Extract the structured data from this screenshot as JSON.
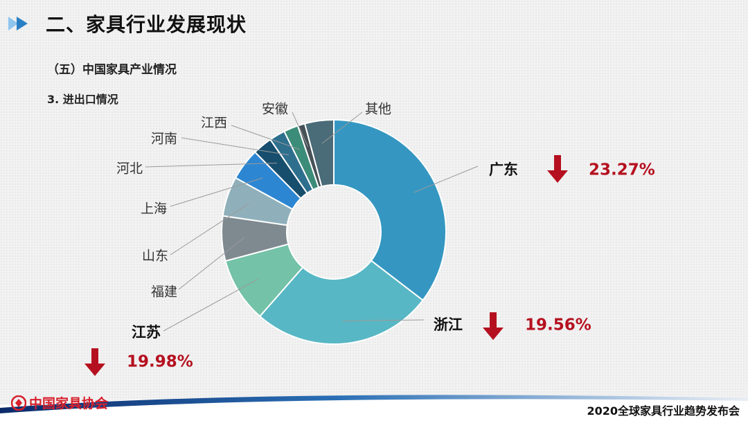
{
  "slide": {
    "title": "二、家具行业发展现状",
    "subtitle": "（五）中国家具产业情况",
    "section": "3. 进出口情况"
  },
  "footer": {
    "org": "中国家具协会",
    "event": "2020全球家具行业趋势发布会"
  },
  "colors": {
    "accent_red": "#b5101f",
    "title_arrow": "#2a7fc4"
  },
  "chart_data": {
    "type": "pie",
    "donut": true,
    "title": "",
    "slices": [
      {
        "label": "广东",
        "value": 34.0,
        "color": "#3597c1"
      },
      {
        "label": "浙江",
        "value": 25.0,
        "color": "#58b7c4"
      },
      {
        "label": "江苏",
        "value": 9.0,
        "color": "#74c2a8"
      },
      {
        "label": "福建",
        "value": 6.2,
        "color": "#7f8a90"
      },
      {
        "label": "山东",
        "value": 5.5,
        "color": "#8fb0bb"
      },
      {
        "label": "上海",
        "value": 4.4,
        "color": "#2d86d2"
      },
      {
        "label": "河北",
        "value": 2.7,
        "color": "#184e6d"
      },
      {
        "label": "河南",
        "value": 2.2,
        "color": "#2f6f8e"
      },
      {
        "label": "江西",
        "value": 2.0,
        "color": "#3c8c7a"
      },
      {
        "label": "安徽",
        "value": 1.0,
        "color": "#465258"
      },
      {
        "label": "其他",
        "value": 4.0,
        "color": "#4a6b78"
      }
    ],
    "annotations": [
      {
        "label": "广东",
        "change": "23.27%",
        "direction": "down"
      },
      {
        "label": "浙江",
        "change": "19.56%",
        "direction": "down"
      },
      {
        "label": "江苏",
        "change": "19.98%",
        "direction": "down"
      }
    ]
  }
}
